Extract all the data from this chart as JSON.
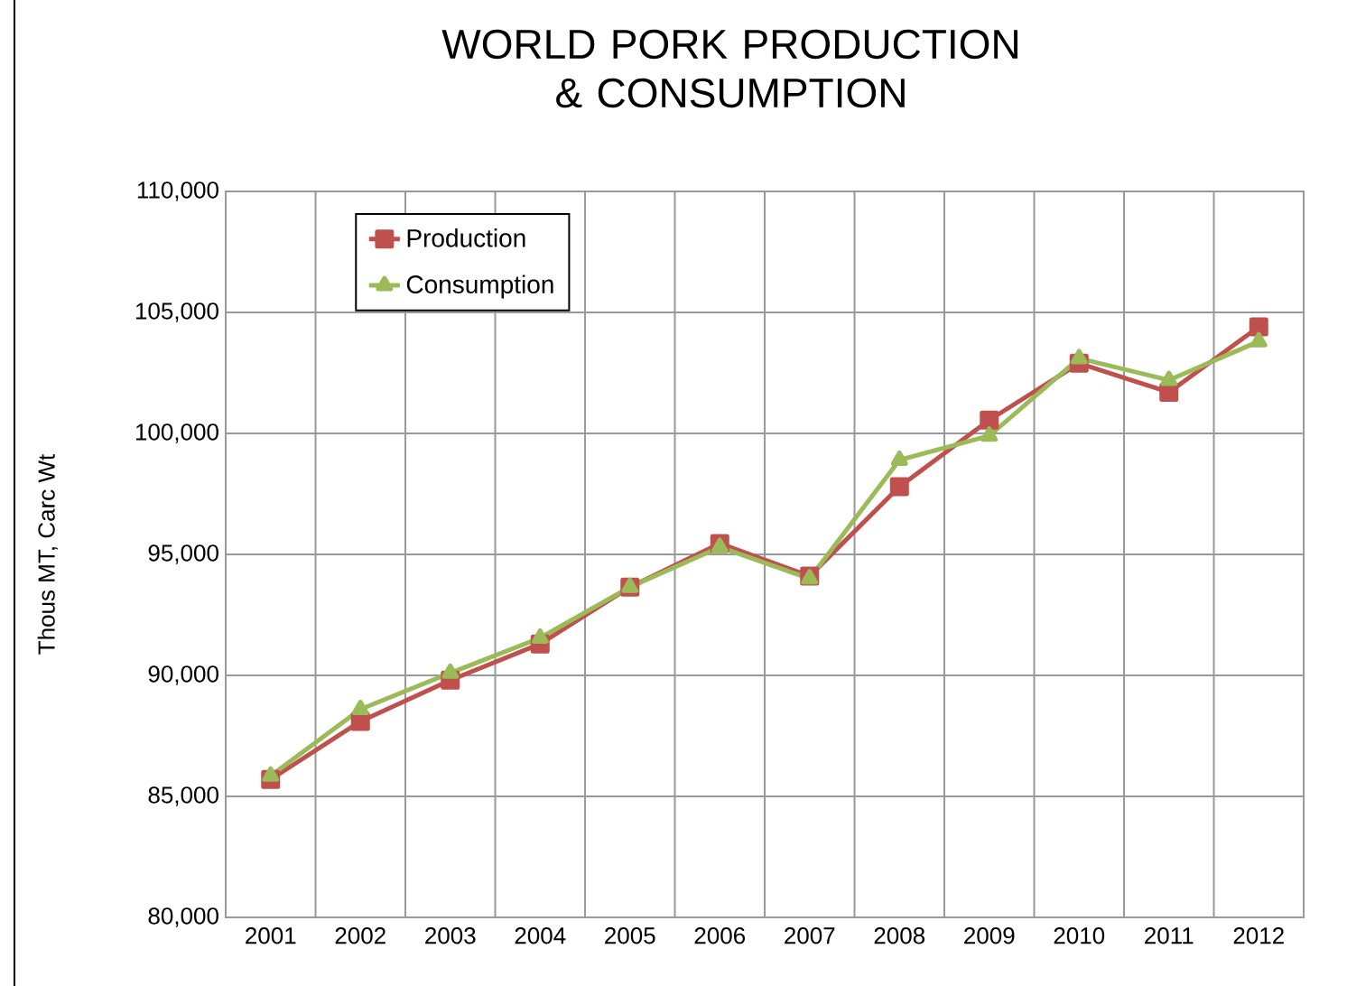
{
  "chart_data": {
    "type": "line",
    "title": "WORLD PORK PRODUCTION & CONSUMPTION",
    "ylabel": "Thous MT, Carc Wt",
    "categories": [
      "2001",
      "2002",
      "2003",
      "2004",
      "2005",
      "2006",
      "2007",
      "2008",
      "2009",
      "2010",
      "2011",
      "2012"
    ],
    "series": [
      {
        "name": "Production",
        "color": "#c0504d",
        "marker": "square",
        "values": [
          85700,
          88100,
          89800,
          91300,
          93650,
          95450,
          94100,
          97800,
          100550,
          102900,
          101700,
          104400
        ]
      },
      {
        "name": "Consumption",
        "color": "#9bbb59",
        "marker": "triangle",
        "values": [
          85850,
          88600,
          90100,
          91550,
          93650,
          95300,
          94000,
          98900,
          99900,
          103100,
          102200,
          103800
        ]
      }
    ],
    "ylim": [
      80000,
      110000
    ],
    "yticks": [
      {
        "value": 80000,
        "label": "80,000"
      },
      {
        "value": 85000,
        "label": "85,000"
      },
      {
        "value": 90000,
        "label": "90,000"
      },
      {
        "value": 95000,
        "label": "95,000"
      },
      {
        "value": 100000,
        "label": "100,000"
      },
      {
        "value": 105000,
        "label": "105,000"
      },
      {
        "value": 110000,
        "label": "110,000"
      }
    ],
    "grid": true,
    "legend": "top left",
    "line_style": "solid"
  }
}
